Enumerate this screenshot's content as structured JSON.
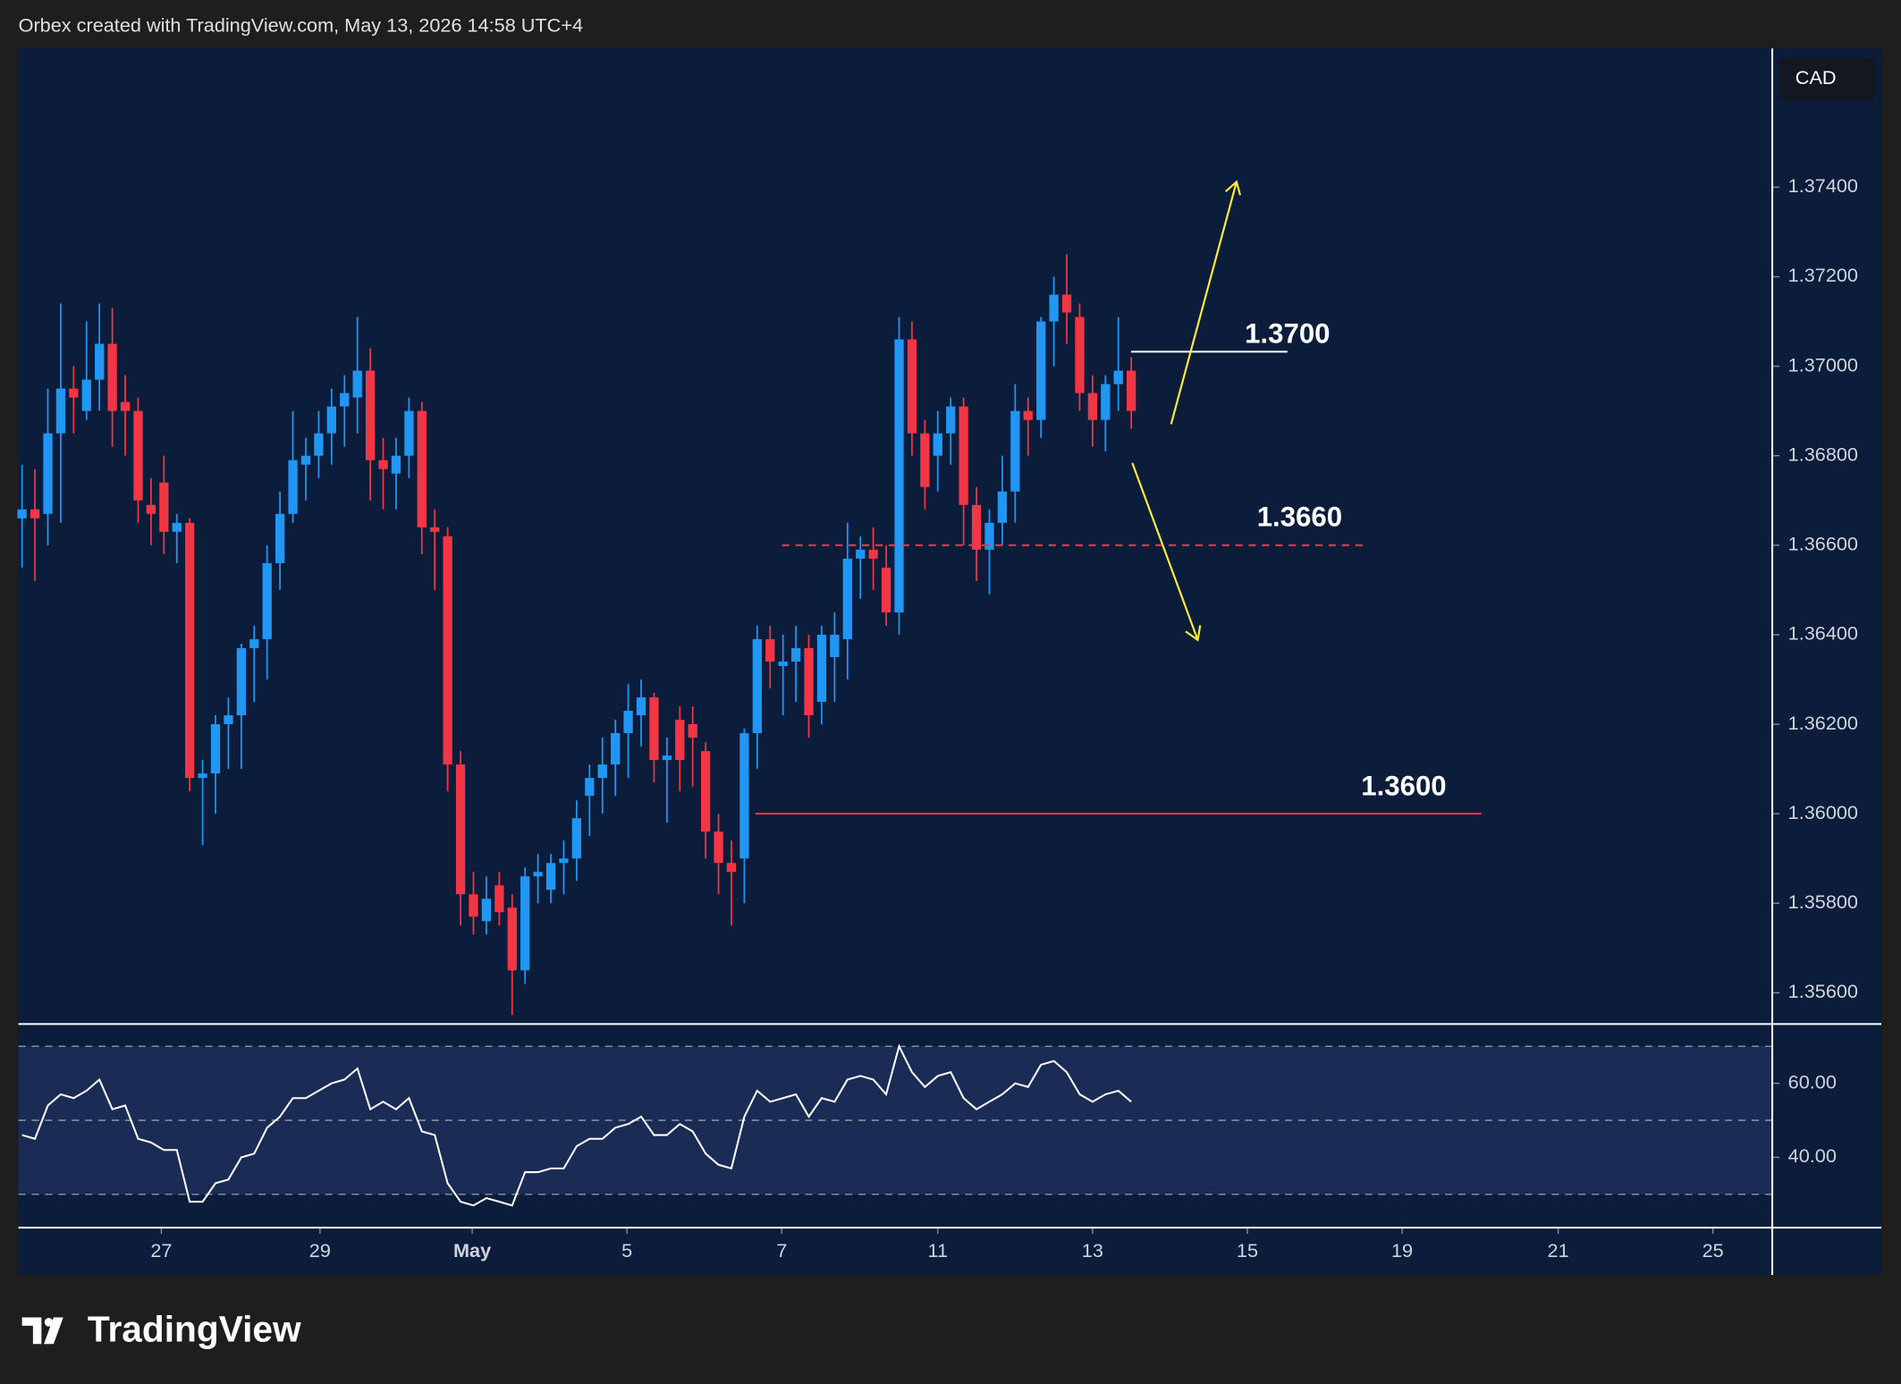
{
  "header": "Orbex created with TradingView.com, May 13, 2026 14:58 UTC+4",
  "logo": "TradingView",
  "chart_data": [
    {
      "type": "candlestick",
      "currency": "CAD",
      "up_color": "#2196f3",
      "down_color": "#f23645",
      "open": [
        1.3666,
        1.3668,
        1.3667,
        1.3685,
        1.3695,
        1.369,
        1.3697,
        1.3705,
        1.3692,
        1.369,
        1.3669,
        1.3674,
        1.3663,
        1.3665,
        1.3608,
        1.3609,
        1.362,
        1.3622,
        1.3637,
        1.3639,
        1.3656,
        1.3667,
        1.3678,
        1.368,
        1.3685,
        1.3691,
        1.3693,
        1.3699,
        1.3679,
        1.3676,
        1.368,
        1.369,
        1.3664,
        1.3662,
        1.3611,
        1.3582,
        1.3576,
        1.3584,
        1.3579,
        1.3565,
        1.3586,
        1.3583,
        1.3589,
        1.359,
        1.3604,
        1.3608,
        1.3611,
        1.3618,
        1.3622,
        1.3626,
        1.3612,
        1.3621,
        1.362,
        1.3614,
        1.3596,
        1.3589,
        1.359,
        1.3618,
        1.3639,
        1.3633,
        1.3634,
        1.3637,
        1.3625,
        1.3635,
        1.3639,
        1.3657,
        1.3659,
        1.3655,
        1.3645,
        1.3706,
        1.3685,
        1.368,
        1.3685,
        1.3691,
        1.3669,
        1.3659,
        1.3665,
        1.3672,
        1.369,
        1.3688,
        1.371,
        1.3716,
        1.3711,
        1.3694,
        1.3688,
        1.3696,
        1.3699
      ],
      "high": [
        1.3678,
        1.3677,
        1.3695,
        1.3714,
        1.37,
        1.371,
        1.3714,
        1.3713,
        1.3698,
        1.3693,
        1.3675,
        1.368,
        1.3667,
        1.3666,
        1.3612,
        1.3622,
        1.3626,
        1.3638,
        1.3642,
        1.366,
        1.3672,
        1.369,
        1.3684,
        1.369,
        1.3695,
        1.3698,
        1.3711,
        1.3704,
        1.3684,
        1.3684,
        1.3693,
        1.3692,
        1.3668,
        1.3664,
        1.3614,
        1.3587,
        1.3586,
        1.3587,
        1.3582,
        1.3588,
        1.3591,
        1.3591,
        1.3594,
        1.3603,
        1.3611,
        1.3617,
        1.3621,
        1.3629,
        1.363,
        1.3627,
        1.3617,
        1.3624,
        1.3624,
        1.3616,
        1.36,
        1.3594,
        1.3619,
        1.3642,
        1.3642,
        1.364,
        1.3642,
        1.364,
        1.3642,
        1.3645,
        1.3665,
        1.3662,
        1.3664,
        1.366,
        1.3711,
        1.371,
        1.3688,
        1.369,
        1.3693,
        1.3693,
        1.3673,
        1.3668,
        1.368,
        1.3696,
        1.3693,
        1.3711,
        1.372,
        1.3725,
        1.3714,
        1.3698,
        1.3698,
        1.3711,
        1.3702
      ],
      "low": [
        1.3655,
        1.3652,
        1.366,
        1.3665,
        1.3685,
        1.3688,
        1.369,
        1.3682,
        1.368,
        1.3665,
        1.366,
        1.3658,
        1.3656,
        1.3605,
        1.3593,
        1.36,
        1.361,
        1.361,
        1.3625,
        1.363,
        1.365,
        1.3665,
        1.367,
        1.3675,
        1.3678,
        1.3682,
        1.3685,
        1.367,
        1.3668,
        1.3668,
        1.3675,
        1.3658,
        1.365,
        1.3605,
        1.3575,
        1.3573,
        1.3573,
        1.3575,
        1.3555,
        1.3562,
        1.358,
        1.358,
        1.3582,
        1.3585,
        1.3595,
        1.36,
        1.3604,
        1.3608,
        1.3615,
        1.3607,
        1.3598,
        1.3605,
        1.3606,
        1.359,
        1.3582,
        1.3575,
        1.358,
        1.361,
        1.3628,
        1.3622,
        1.3625,
        1.3617,
        1.362,
        1.3625,
        1.363,
        1.3648,
        1.365,
        1.3642,
        1.364,
        1.368,
        1.3668,
        1.3672,
        1.3678,
        1.366,
        1.3652,
        1.3649,
        1.366,
        1.3665,
        1.368,
        1.3684,
        1.37,
        1.3705,
        1.369,
        1.3682,
        1.3681,
        1.369,
        1.3686
      ],
      "close": [
        1.3668,
        1.3666,
        1.3685,
        1.3695,
        1.3693,
        1.3697,
        1.3705,
        1.369,
        1.369,
        1.367,
        1.3667,
        1.3663,
        1.3665,
        1.3608,
        1.3609,
        1.362,
        1.3622,
        1.3637,
        1.3639,
        1.3656,
        1.3667,
        1.3679,
        1.368,
        1.3685,
        1.3691,
        1.3694,
        1.3699,
        1.3679,
        1.3677,
        1.368,
        1.369,
        1.3664,
        1.3663,
        1.3611,
        1.3582,
        1.3577,
        1.3581,
        1.3578,
        1.3565,
        1.3586,
        1.3587,
        1.3589,
        1.359,
        1.3599,
        1.3608,
        1.3611,
        1.3618,
        1.3623,
        1.3626,
        1.3612,
        1.3613,
        1.3612,
        1.3617,
        1.3596,
        1.3589,
        1.3587,
        1.3618,
        1.3639,
        1.3634,
        1.3634,
        1.3637,
        1.3622,
        1.364,
        1.364,
        1.3657,
        1.3659,
        1.3657,
        1.3645,
        1.3706,
        1.3685,
        1.3673,
        1.3685,
        1.3691,
        1.3669,
        1.3659,
        1.3665,
        1.3672,
        1.369,
        1.3688,
        1.371,
        1.3716,
        1.3712,
        1.3694,
        1.3688,
        1.3696,
        1.3699,
        1.369
      ],
      "ylim": [
        1.3553,
        1.3771
      ],
      "yticks": [
        {
          "value": 1.374,
          "label": "1.37400"
        },
        {
          "value": 1.372,
          "label": "1.37200"
        },
        {
          "value": 1.37,
          "label": "1.37000"
        },
        {
          "value": 1.368,
          "label": "1.36800"
        },
        {
          "value": 1.366,
          "label": "1.36600"
        },
        {
          "value": 1.364,
          "label": "1.36400"
        },
        {
          "value": 1.362,
          "label": "1.36200"
        },
        {
          "value": 1.36,
          "label": "1.36000"
        },
        {
          "value": 1.358,
          "label": "1.35800"
        },
        {
          "value": 1.356,
          "label": "1.35600"
        }
      ],
      "xlim": [
        -0.28,
        135.7
      ],
      "xticks": [
        {
          "value": 10.8,
          "label": "27"
        },
        {
          "value": 23.1,
          "label": "29"
        },
        {
          "value": 34.9,
          "label": "May"
        },
        {
          "value": 46.9,
          "label": "5"
        },
        {
          "value": 58.9,
          "label": "7"
        },
        {
          "value": 71.0,
          "label": "11"
        },
        {
          "value": 83.0,
          "label": "13"
        },
        {
          "value": 95.0,
          "label": "15"
        },
        {
          "value": 107.0,
          "label": "19"
        },
        {
          "value": 119.1,
          "label": "21"
        },
        {
          "value": 131.1,
          "label": "25"
        }
      ],
      "levels": [
        {
          "value": 1.37,
          "label": "1.3700",
          "color": "#ffffff",
          "style": "solid"
        },
        {
          "value": 1.366,
          "label": "1.3660",
          "color": "#f23645",
          "style": "dashed"
        },
        {
          "value": 1.36,
          "label": "1.3600",
          "color": "#f23645",
          "style": "solid"
        }
      ]
    },
    {
      "type": "line",
      "color": "#ffffff",
      "values": [
        46,
        45,
        54,
        57,
        56,
        58,
        61,
        53,
        54,
        45,
        44,
        42,
        42,
        28,
        28,
        33,
        34,
        40,
        41,
        48,
        51,
        56,
        56,
        58,
        60,
        61,
        64,
        53,
        55,
        53,
        56,
        47,
        46,
        33,
        28,
        27,
        29,
        28,
        27,
        36,
        36,
        37,
        37,
        43,
        45,
        45,
        48,
        49,
        51,
        46,
        46,
        49,
        47,
        41,
        38,
        37,
        51,
        58,
        55,
        56,
        57,
        51,
        56,
        55,
        61,
        62,
        61,
        57,
        70,
        63,
        59,
        62,
        63,
        56,
        53,
        55,
        57,
        60,
        59,
        65,
        66,
        63,
        57,
        55,
        57,
        58,
        55
      ],
      "ylim": [
        21,
        76
      ],
      "yticks": [
        {
          "value": 60,
          "label": "60.00"
        },
        {
          "value": 40,
          "label": "40.00"
        }
      ],
      "levels": [
        70,
        50,
        30
      ]
    }
  ]
}
